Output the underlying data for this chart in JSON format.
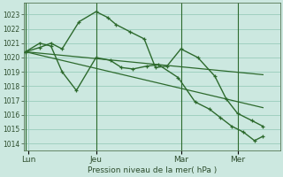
{
  "background_color": "#cce8e0",
  "grid_color": "#99ccbb",
  "line_color": "#2d6a2d",
  "xlabel": "Pression niveau de la mer( hPa )",
  "ylim": [
    1013.5,
    1023.8
  ],
  "yticks": [
    1014,
    1015,
    1016,
    1017,
    1018,
    1019,
    1020,
    1021,
    1022,
    1023
  ],
  "day_labels": [
    "Lun",
    "Jeu",
    "Mar",
    "Mer"
  ],
  "day_positions": [
    0.08,
    2.08,
    4.58,
    6.25
  ],
  "vline_positions": [
    0.0,
    2.08,
    4.58,
    6.25
  ],
  "xlim": [
    -0.05,
    7.5
  ],
  "series": {
    "spiky": {
      "x": [
        0.0,
        0.42,
        0.75,
        1.08,
        1.58,
        2.08,
        2.42,
        2.67,
        3.08,
        3.5,
        3.83,
        4.17,
        4.58,
        5.08,
        5.58,
        5.92,
        6.25,
        6.67,
        7.0
      ],
      "y": [
        1020.4,
        1020.7,
        1021.0,
        1020.6,
        1022.5,
        1023.2,
        1022.8,
        1022.3,
        1021.8,
        1021.3,
        1019.3,
        1019.4,
        1020.6,
        1020.0,
        1018.7,
        1017.1,
        1016.1,
        1015.6,
        1015.2
      ],
      "lw": 1.0
    },
    "lower_spiky": {
      "x": [
        0.0,
        0.42,
        0.75,
        1.08,
        1.5,
        2.08,
        2.5,
        2.83,
        3.17,
        3.58,
        3.92,
        4.5,
        5.0,
        5.42,
        5.75,
        6.08,
        6.42,
        6.75,
        7.0
      ],
      "y": [
        1020.4,
        1021.0,
        1020.8,
        1019.0,
        1017.7,
        1020.0,
        1019.8,
        1019.3,
        1019.2,
        1019.4,
        1019.5,
        1018.6,
        1016.9,
        1016.4,
        1015.8,
        1015.2,
        1014.8,
        1014.2,
        1014.5
      ],
      "lw": 1.0
    },
    "linear1": {
      "x": [
        0.0,
        7.0
      ],
      "y": [
        1020.4,
        1018.8
      ],
      "lw": 0.9
    },
    "linear2": {
      "x": [
        0.0,
        7.0
      ],
      "y": [
        1020.4,
        1016.5
      ],
      "lw": 0.9
    }
  }
}
